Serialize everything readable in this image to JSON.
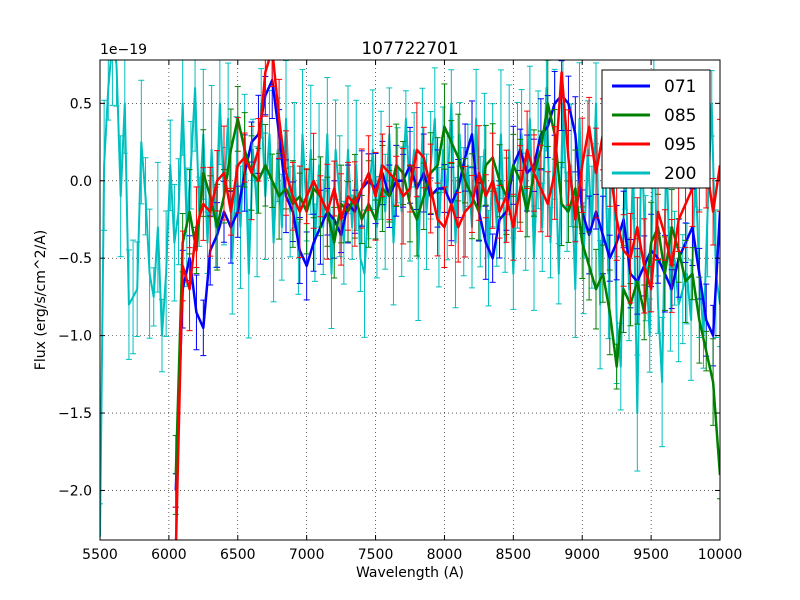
{
  "chart_data": {
    "type": "line",
    "title": "107722701",
    "xlabel": "Wavelength (A)",
    "ylabel": "Flux (erg/s/cm^2/A)",
    "y_offset_label": "1e−19",
    "xlim": [
      5500,
      10000
    ],
    "ylim": [
      -2.32,
      0.78
    ],
    "grid": true,
    "legend_position": "top-right",
    "xticks": [
      5500,
      6000,
      6500,
      7000,
      7500,
      8000,
      8500,
      9000,
      9500,
      10000
    ],
    "xtick_labels": [
      "5500",
      "6000",
      "6500",
      "7000",
      "7500",
      "8000",
      "8500",
      "9000",
      "9500",
      "10000"
    ],
    "yticks": [
      0.5,
      0.0,
      -0.5,
      -1.0,
      -1.5,
      -2.0
    ],
    "ytick_labels": [
      "0.5",
      "0.0",
      "−0.5",
      "−1.0",
      "−1.5",
      "−2.0"
    ],
    "series": [
      {
        "name": "071",
        "color": "#0000ff",
        "x": [
          6050,
          6100,
          6150,
          6200,
          6250,
          6300,
          6350,
          6400,
          6450,
          6500,
          6550,
          6600,
          6650,
          6700,
          6750,
          6800,
          6850,
          6900,
          6950,
          7000,
          7050,
          7100,
          7150,
          7200,
          7250,
          7300,
          7350,
          7400,
          7450,
          7500,
          7550,
          7600,
          7650,
          7700,
          7750,
          7800,
          7850,
          7900,
          7950,
          8000,
          8050,
          8100,
          8150,
          8200,
          8250,
          8300,
          8350,
          8400,
          8450,
          8500,
          8550,
          8600,
          8650,
          8700,
          8750,
          8800,
          8850,
          8900,
          8950,
          9000,
          9050,
          9100,
          9150,
          9200,
          9250,
          9300,
          9350,
          9400,
          9450,
          9500,
          9550,
          9600,
          9650,
          9700,
          9750,
          9800,
          9850,
          9900,
          9950,
          10000
        ],
        "y": [
          -2.0,
          -0.7,
          -0.5,
          -0.85,
          -0.95,
          -0.45,
          -0.35,
          -0.2,
          -0.3,
          -0.2,
          0.05,
          0.25,
          0.3,
          0.55,
          0.65,
          0.3,
          -0.1,
          -0.2,
          -0.45,
          -0.55,
          -0.4,
          -0.3,
          -0.2,
          -0.25,
          -0.35,
          -0.15,
          -0.2,
          -0.05,
          0.0,
          -0.05,
          0.05,
          -0.1,
          0.0,
          0.0,
          0.1,
          -0.05,
          0.05,
          -0.1,
          -0.05,
          -0.05,
          -0.15,
          -0.05,
          0.15,
          0.3,
          -0.2,
          -0.4,
          -0.5,
          -0.25,
          -0.2,
          0.1,
          0.2,
          0.05,
          0.1,
          0.3,
          0.35,
          0.5,
          0.55,
          0.5,
          0.3,
          -0.2,
          -0.35,
          -0.2,
          -0.35,
          -0.5,
          -0.4,
          -0.25,
          -0.6,
          -0.65,
          -0.55,
          -0.45,
          -0.5,
          -0.6,
          -0.7,
          -0.5,
          -0.4,
          -0.3,
          -0.6,
          -0.9,
          -1.0,
          -0.2
        ],
        "err": 0.18
      },
      {
        "name": "085",
        "color": "#008000",
        "x": [
          6050,
          6100,
          6150,
          6200,
          6250,
          6300,
          6350,
          6400,
          6450,
          6500,
          6550,
          6600,
          6650,
          6700,
          6750,
          6800,
          6850,
          6900,
          6950,
          7000,
          7050,
          7100,
          7150,
          7200,
          7250,
          7300,
          7350,
          7400,
          7450,
          7500,
          7550,
          7600,
          7650,
          7700,
          7750,
          7800,
          7850,
          7900,
          7950,
          8000,
          8050,
          8100,
          8150,
          8200,
          8250,
          8300,
          8350,
          8400,
          8450,
          8500,
          8550,
          8600,
          8650,
          8700,
          8750,
          8800,
          8850,
          8900,
          8950,
          9000,
          9050,
          9100,
          9150,
          9200,
          9250,
          9300,
          9350,
          9400,
          9450,
          9500,
          9550,
          9600,
          9650,
          9700,
          9750,
          9800,
          9850,
          9900,
          9950,
          10000
        ],
        "y": [
          -1.9,
          -0.4,
          -0.2,
          -0.45,
          0.05,
          -0.1,
          -0.3,
          -0.1,
          0.2,
          0.4,
          0.2,
          0.05,
          0.0,
          0.1,
          0.0,
          -0.1,
          -0.05,
          -0.15,
          -0.1,
          -0.2,
          -0.05,
          -0.1,
          -0.2,
          -0.4,
          -0.15,
          -0.2,
          -0.1,
          -0.25,
          -0.15,
          -0.25,
          -0.05,
          -0.1,
          0.1,
          0.05,
          -0.15,
          -0.25,
          -0.1,
          0.05,
          0.1,
          0.35,
          0.25,
          0.15,
          0.0,
          -0.1,
          -0.2,
          0.1,
          0.15,
          0.0,
          -0.1,
          0.1,
          0.0,
          -0.2,
          0.05,
          0.2,
          0.5,
          0.3,
          -0.15,
          -0.2,
          -0.05,
          -0.4,
          -0.55,
          -0.7,
          -0.6,
          -0.85,
          -1.2,
          -0.7,
          -0.8,
          -0.65,
          -0.85,
          -0.4,
          -0.3,
          -0.6,
          -0.3,
          -0.45,
          -0.65,
          -0.6,
          -0.9,
          -1.1,
          -1.3,
          -1.9
        ],
        "err": 0.2
      },
      {
        "name": "095",
        "color": "#ff0000",
        "x": [
          6050,
          6100,
          6150,
          6200,
          6250,
          6300,
          6350,
          6400,
          6450,
          6500,
          6550,
          6600,
          6650,
          6700,
          6750,
          6800,
          6850,
          6900,
          6950,
          7000,
          7050,
          7100,
          7150,
          7200,
          7250,
          7300,
          7350,
          7400,
          7450,
          7500,
          7550,
          7600,
          7650,
          7700,
          7750,
          7800,
          7850,
          7900,
          7950,
          8000,
          8050,
          8100,
          8150,
          8200,
          8250,
          8300,
          8350,
          8400,
          8450,
          8500,
          8550,
          8600,
          8650,
          8700,
          8750,
          8800,
          8850,
          8900,
          8950,
          9000,
          9050,
          9100,
          9150,
          9200,
          9250,
          9300,
          9350,
          9400,
          9450,
          9500,
          9550,
          9600,
          9650,
          9700,
          9750,
          9800,
          9850,
          9900,
          9950,
          10000
        ],
        "y": [
          -2.4,
          -0.55,
          -0.7,
          -0.3,
          -0.15,
          -0.2,
          0.0,
          0.05,
          -0.2,
          0.1,
          0.15,
          0.05,
          0.2,
          0.7,
          0.85,
          0.4,
          0.05,
          -0.1,
          -0.2,
          -0.1,
          0.0,
          -0.1,
          -0.2,
          -0.05,
          -0.25,
          -0.1,
          -0.15,
          -0.05,
          0.05,
          -0.1,
          0.1,
          0.05,
          0.0,
          -0.1,
          -0.05,
          0.2,
          0.15,
          -0.05,
          -0.25,
          -0.3,
          -0.15,
          -0.3,
          -0.2,
          -0.15,
          0.05,
          -0.1,
          0.0,
          -0.2,
          -0.1,
          -0.3,
          -0.05,
          0.2,
          0.05,
          -0.05,
          -0.15,
          0.05,
          0.7,
          0.15,
          -0.25,
          0.1,
          0.35,
          0.05,
          0.3,
          0.1,
          -0.25,
          -0.45,
          -0.5,
          -0.3,
          -0.55,
          -0.7,
          -0.2,
          -0.35,
          -0.55,
          -0.25,
          -0.15,
          -0.05,
          0.05,
          0.1,
          -0.2,
          0.1
        ],
        "err": 0.22
      },
      {
        "name": "200",
        "color": "#00bfbf",
        "x": [
          5500,
          5530,
          5560,
          5590,
          5620,
          5650,
          5680,
          5710,
          5740,
          5770,
          5800,
          5830,
          5860,
          5890,
          5920,
          5950,
          5980,
          6010,
          6040,
          6070,
          6100,
          6130,
          6160,
          6190,
          6220,
          6250,
          6280,
          6310,
          6340,
          6370,
          6400,
          6430,
          6460,
          6490,
          6520,
          6550,
          6580,
          6610,
          6640,
          6670,
          6700,
          6730,
          6760,
          6790,
          6820,
          6850,
          6880,
          6910,
          6940,
          6970,
          7000,
          7030,
          7060,
          7090,
          7120,
          7150,
          7180,
          7210,
          7240,
          7270,
          7300,
          7330,
          7360,
          7390,
          7420,
          7450,
          7480,
          7510,
          7540,
          7570,
          7600,
          7630,
          7660,
          7690,
          7720,
          7750,
          7780,
          7810,
          7840,
          7870,
          7900,
          7930,
          7960,
          7990,
          8020,
          8050,
          8080,
          8110,
          8140,
          8170,
          8200,
          8230,
          8260,
          8290,
          8320,
          8350,
          8380,
          8410,
          8440,
          8470,
          8500,
          8530,
          8560,
          8590,
          8620,
          8650,
          8680,
          8710,
          8740,
          8770,
          8800,
          8830,
          8860,
          8890,
          8920,
          8950,
          8980,
          9010,
          9040,
          9070,
          9100,
          9130,
          9160,
          9190,
          9220,
          9250,
          9280,
          9310,
          9340,
          9370,
          9400,
          9430,
          9460,
          9490,
          9520,
          9550,
          9580,
          9610,
          9640,
          9670,
          9700,
          9730,
          9760,
          9790,
          9820,
          9850,
          9880,
          9910,
          9940,
          9970,
          10000
        ],
        "y": [
          -2.3,
          0.1,
          0.6,
          0.9,
          0.75,
          -0.1,
          0.5,
          -0.8,
          -0.75,
          -0.7,
          0.25,
          -0.1,
          -0.6,
          -0.75,
          -0.3,
          -1.0,
          -0.6,
          0.1,
          -0.4,
          -0.2,
          0.5,
          -0.3,
          0.1,
          0.6,
          -0.2,
          0.3,
          -0.4,
          0.2,
          -0.3,
          0.5,
          -0.1,
          0.4,
          -0.5,
          0.1,
          -0.3,
          0.3,
          -0.6,
          0.2,
          -0.2,
          0.5,
          -0.1,
          0.3,
          -0.4,
          0.2,
          -0.3,
          0.4,
          -0.2,
          0.1,
          -0.5,
          0.3,
          -0.2,
          0.2,
          -0.4,
          0.1,
          -0.3,
          0.3,
          -0.6,
          0.2,
          -0.1,
          -0.4,
          0.2,
          -0.3,
          0.1,
          -0.5,
          -0.6,
          -0.1,
          0.2,
          -0.3,
          0.1,
          -0.2,
          0.3,
          -0.4,
          0.1,
          -0.2,
          0.4,
          -0.1,
          0.2,
          -0.5,
          0.3,
          -0.2,
          0.1,
          0.4,
          -0.3,
          0.2,
          -0.1,
          0.5,
          -0.4,
          0.3,
          -0.2,
          0.1,
          -0.3,
          0.4,
          -0.2,
          0.2,
          -0.5,
          0.1,
          -0.3,
          0.3,
          -0.4,
          0.2,
          -0.6,
          0.1,
          0.3,
          -0.2,
          0.4,
          -0.5,
          0.2,
          -0.3,
          0.6,
          -0.4,
          0.3,
          -0.6,
          0.5,
          -0.2,
          0.1,
          -0.7,
          0.4,
          -0.5,
          0.2,
          -0.3,
          0.5,
          -0.8,
          0.3,
          -0.6,
          0.4,
          -0.9,
          -1.2,
          0.2,
          -0.7,
          0.1,
          -1.5,
          0.3,
          -0.5,
          -1.0,
          0.4,
          -0.8,
          -1.3,
          0.2,
          -0.7,
          -0.5,
          -0.8,
          -0.7,
          -0.6,
          -0.9,
          0.1,
          -0.6,
          -1.0,
          -0.2,
          0.5,
          -0.6,
          -0.8
        ],
        "err": 0.3
      }
    ]
  }
}
